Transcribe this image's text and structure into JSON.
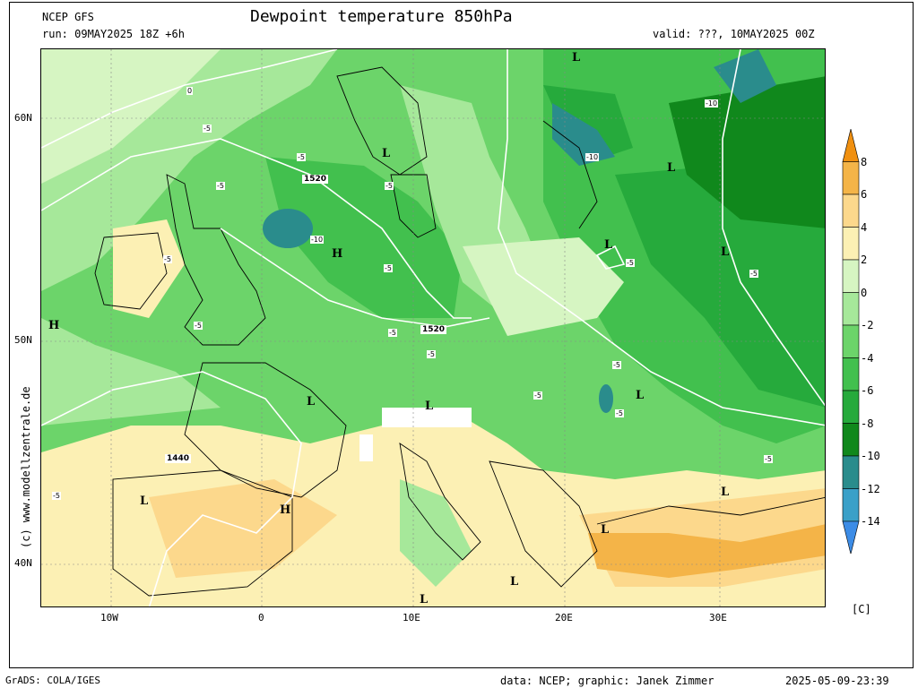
{
  "header": {
    "model": "NCEP GFS",
    "run": "run: 09MAY2025 18Z +6h",
    "title": "Dewpoint temperature 850hPa",
    "valid": "valid: ???, 10MAY2025 00Z"
  },
  "axes": {
    "lat_labels": [
      "60N",
      "50N",
      "40N"
    ],
    "lon_labels": [
      "10W",
      "0",
      "10E",
      "20E",
      "30E"
    ]
  },
  "colorbar": {
    "unit": "[C]",
    "levels": [
      "8",
      "6",
      "4",
      "2",
      "0",
      "-2",
      "-4",
      "-6",
      "-8",
      "-10",
      "-12",
      "-14"
    ],
    "colors": [
      "#f09010",
      "#f4b448",
      "#fcd88c",
      "#fcf0b4",
      "#d6f5c2",
      "#a6e89a",
      "#6cd46a",
      "#42c04e",
      "#26aa3c",
      "#10881c",
      "#2a8c8c",
      "#3aa0c8",
      "#3c8ce6"
    ]
  },
  "pressure_labels": {
    "l": "L",
    "h": "H"
  },
  "contour_labels": {
    "g1": "1520",
    "g2": "1520",
    "g3": "1440",
    "m5": "-5",
    "m10": "-10",
    "z": "0"
  },
  "watermark": "(c) www.modellzentrale.de",
  "footer": {
    "left": "GrADS: COLA/IGES",
    "credit": "data: NCEP; graphic: Janek Zimmer",
    "timestamp": "2025-05-09-23:39"
  }
}
